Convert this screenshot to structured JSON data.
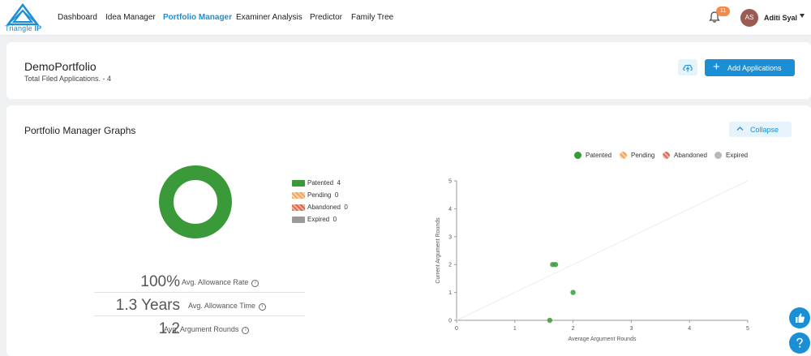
{
  "brand": {
    "name_part1": "Triangle",
    "name_part2": "IP"
  },
  "nav": {
    "items": [
      {
        "label": "Dashboard",
        "active": false
      },
      {
        "label": "Idea Manager",
        "active": false
      },
      {
        "label": "Portfolio Manager",
        "active": true
      },
      {
        "label": "Examiner Analysis",
        "active": false
      },
      {
        "label": "Predictor",
        "active": false
      },
      {
        "label": "Family Tree",
        "active": false
      }
    ]
  },
  "user": {
    "initials": "AS",
    "name": "Aditi Syal",
    "notification_count": "11"
  },
  "portfolio": {
    "title": "DemoPortfolio",
    "subtitle": "Total Filed Applications. - 4",
    "add_button_label": "Add Applications"
  },
  "graphs": {
    "title": "Portfolio Manager Graphs",
    "collapse_label": "Collapse"
  },
  "status_legend": [
    {
      "label": "Patented",
      "count": "4",
      "color": "#3a9a3a"
    },
    {
      "label": "Pending",
      "count": "0",
      "color": "#f5a45a"
    },
    {
      "label": "Abandoned",
      "count": "0",
      "color": "#d9684e"
    },
    {
      "label": "Expired",
      "count": "0",
      "color": "#9a9a9a"
    }
  ],
  "stats": [
    {
      "value": "100%",
      "label": "Avg. Allowance Rate"
    },
    {
      "value": "1.3 Years",
      "label": "Avg. Allowance Time"
    },
    {
      "value": "1.2",
      "label": "Avg. Argument Rounds"
    }
  ],
  "chart_data": [
    {
      "type": "pie",
      "variant": "donut",
      "categories": [
        "Patented",
        "Pending",
        "Abandoned",
        "Expired"
      ],
      "values": [
        4,
        0,
        0,
        0
      ],
      "colors": [
        "#3a9a3a",
        "#f5a45a",
        "#d9684e",
        "#9a9a9a"
      ]
    },
    {
      "type": "scatter",
      "xlabel": "Average Argument Rounds",
      "ylabel": "Current Argument Rounds",
      "xlim": [
        0,
        5
      ],
      "ylim": [
        0,
        5
      ],
      "xticks": [
        "0",
        "1",
        "2",
        "3",
        "4",
        "5"
      ],
      "yticks": [
        "0",
        "1",
        "2",
        "3",
        "4",
        "5"
      ],
      "grid": false,
      "reference_line": "diagonal",
      "series": [
        {
          "name": "Patented",
          "color": "#3a9a3a",
          "points": [
            [
              1.6,
              0
            ],
            [
              1.65,
              2
            ],
            [
              1.7,
              2
            ],
            [
              2.0,
              1
            ]
          ]
        },
        {
          "name": "Pending",
          "color": "#f5a45a",
          "points": []
        },
        {
          "name": "Abandoned",
          "color": "#d9684e",
          "points": []
        },
        {
          "name": "Expired",
          "color": "#b8b8b8",
          "points": []
        }
      ]
    }
  ]
}
